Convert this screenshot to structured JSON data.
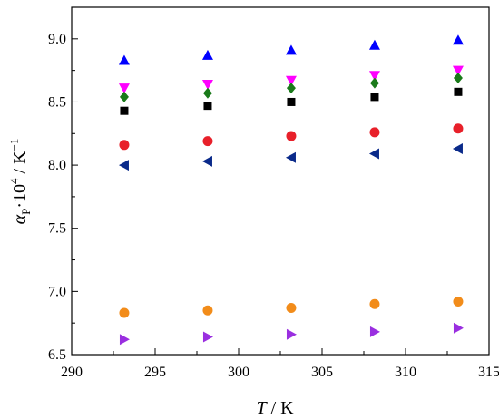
{
  "chart_data": {
    "type": "scatter",
    "xlabel": "T / K",
    "ylabel": "αP·10^4 / K^−1",
    "xlim": [
      290,
      315
    ],
    "ylim": [
      6.5,
      9.25
    ],
    "xticks": [
      290,
      295,
      300,
      305,
      310,
      315
    ],
    "yticks": [
      6.5,
      7.0,
      7.5,
      8.0,
      8.5,
      9.0
    ],
    "xtick_labels": [
      "290",
      "295",
      "300",
      "305",
      "310",
      "315"
    ],
    "ytick_labels": [
      "6.5",
      "7.0",
      "7.5",
      "8.0",
      "8.5",
      "9.0"
    ],
    "grid": false,
    "legend": "none",
    "x": [
      293.15,
      298.15,
      303.15,
      308.15,
      313.15
    ],
    "series": [
      {
        "marker": "triangle-up",
        "color": "#0000ff",
        "values": [
          8.83,
          8.87,
          8.91,
          8.95,
          8.99
        ]
      },
      {
        "marker": "triangle-down",
        "color": "#ff00ff",
        "values": [
          8.61,
          8.64,
          8.67,
          8.71,
          8.75
        ]
      },
      {
        "marker": "diamond",
        "color": "#1a7a1a",
        "values": [
          8.54,
          8.57,
          8.61,
          8.65,
          8.69
        ]
      },
      {
        "marker": "square",
        "color": "#000000",
        "values": [
          8.43,
          8.47,
          8.5,
          8.54,
          8.58
        ]
      },
      {
        "marker": "circle",
        "color": "#e8202a",
        "values": [
          8.16,
          8.19,
          8.23,
          8.26,
          8.29
        ]
      },
      {
        "marker": "triangle-left",
        "color": "#0a2a8a",
        "values": [
          8.0,
          8.03,
          8.06,
          8.09,
          8.13
        ]
      },
      {
        "marker": "circle",
        "color": "#f28c1a",
        "values": [
          6.83,
          6.85,
          6.87,
          6.9,
          6.92
        ]
      },
      {
        "marker": "triangle-right",
        "color": "#9a2fe0",
        "values": [
          6.62,
          6.64,
          6.66,
          6.68,
          6.71
        ]
      }
    ]
  }
}
